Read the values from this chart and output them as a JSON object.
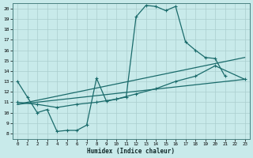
{
  "xlabel": "Humidex (Indice chaleur)",
  "background_color": "#c8eaea",
  "grid_color": "#aacece",
  "line_color": "#1a6b6b",
  "xlim": [
    -0.5,
    23.5
  ],
  "ylim": [
    7.5,
    20.5
  ],
  "yticks": [
    8,
    9,
    10,
    11,
    12,
    13,
    14,
    15,
    16,
    17,
    18,
    19,
    20
  ],
  "xticks": [
    0,
    1,
    2,
    3,
    4,
    5,
    6,
    7,
    8,
    9,
    10,
    11,
    12,
    13,
    14,
    15,
    16,
    17,
    18,
    19,
    20,
    21,
    22,
    23
  ],
  "main_x": [
    0,
    1,
    2,
    3,
    4,
    5,
    6,
    7,
    8,
    9,
    10,
    11,
    12,
    13,
    14,
    15,
    16,
    17,
    18,
    19,
    20,
    21
  ],
  "main_y": [
    13.0,
    11.5,
    10.0,
    10.3,
    8.2,
    8.3,
    8.3,
    8.8,
    13.3,
    11.1,
    11.3,
    11.5,
    19.2,
    20.3,
    20.2,
    19.8,
    20.2,
    16.8,
    16.0,
    15.3,
    15.2,
    13.5
  ],
  "line2_x": [
    0,
    2,
    4,
    6,
    8,
    10,
    12,
    14,
    16,
    18,
    20,
    23
  ],
  "line2_y": [
    11.0,
    10.8,
    10.5,
    10.8,
    11.0,
    11.3,
    11.8,
    12.3,
    13.0,
    13.5,
    14.5,
    13.2
  ],
  "line3_x": [
    0,
    23
  ],
  "line3_y": [
    10.8,
    15.3
  ],
  "line4_x": [
    0,
    23
  ],
  "line4_y": [
    10.8,
    13.2
  ]
}
